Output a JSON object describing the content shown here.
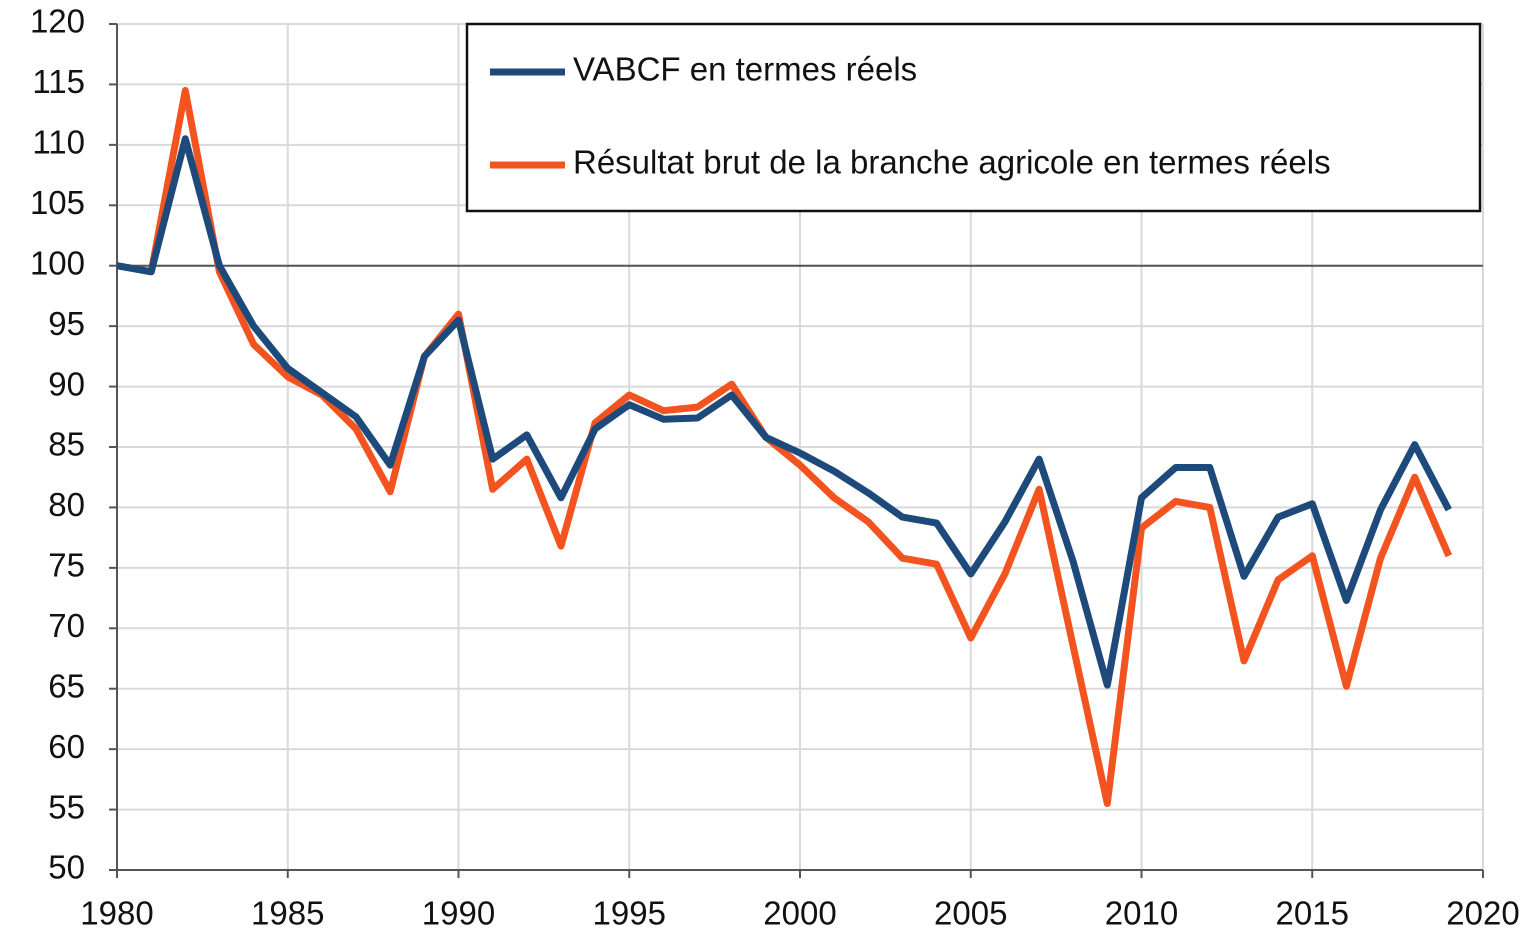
{
  "chart_data": {
    "type": "line",
    "x": [
      1980,
      1981,
      1982,
      1983,
      1984,
      1985,
      1986,
      1987,
      1988,
      1989,
      1990,
      1991,
      1992,
      1993,
      1994,
      1995,
      1996,
      1997,
      1998,
      1999,
      2000,
      2001,
      2002,
      2003,
      2004,
      2005,
      2006,
      2007,
      2008,
      2009,
      2010,
      2011,
      2012,
      2013,
      2014,
      2015,
      2016,
      2017,
      2018,
      2019
    ],
    "series": [
      {
        "name": "VABCF en termes réels",
        "color": "#1d4a7a",
        "values": [
          100,
          99.5,
          110.5,
          100,
          95,
          91.5,
          89.5,
          87.5,
          83.5,
          92.5,
          95.5,
          84,
          86,
          80.8,
          86.5,
          88.5,
          87.3,
          87.4,
          89.3,
          85.8,
          84.5,
          83,
          81.2,
          79.2,
          78.7,
          74.5,
          78.8,
          84,
          75.5,
          65.3,
          80.8,
          83.3,
          83.3,
          74.3,
          79.2,
          80.3,
          72.3,
          79.8,
          85.2,
          79.8
        ]
      },
      {
        "name": "Résultat brut de la branche agricole en termes réels",
        "color": "#f2531f",
        "values": [
          100,
          99.5,
          114.5,
          99.5,
          93.5,
          90.8,
          89.3,
          86.5,
          81.3,
          92.5,
          96,
          81.5,
          84,
          76.8,
          87,
          89.3,
          88,
          88.3,
          90.2,
          85.8,
          83.5,
          80.8,
          78.8,
          75.8,
          75.3,
          69.2,
          74.5,
          81.5,
          68.5,
          55.5,
          78.3,
          80.5,
          80,
          67.3,
          74,
          76,
          65.2,
          75.8,
          82.5,
          76
        ]
      }
    ],
    "xlim": [
      1980,
      2020
    ],
    "xticks": [
      1980,
      1985,
      1990,
      1995,
      2000,
      2005,
      2010,
      2015,
      2020
    ],
    "ylim": [
      50,
      120
    ],
    "yticks": [
      50,
      55,
      60,
      65,
      70,
      75,
      80,
      85,
      90,
      95,
      100,
      105,
      110,
      115,
      120
    ],
    "reference_line": 100,
    "grid": true,
    "legend": "upper right"
  }
}
